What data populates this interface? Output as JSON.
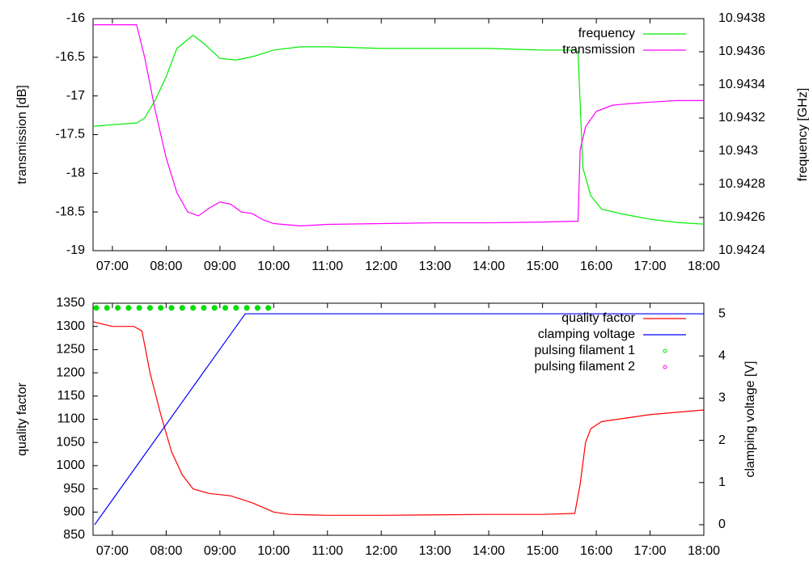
{
  "chart_data": [
    {
      "type": "line",
      "ylabel": "transmission [dB]",
      "y2label": "frequency [GHz]",
      "xlim": [
        6.64,
        18
      ],
      "xticks": [
        {
          "value": 7,
          "label": "07:00"
        },
        {
          "value": 8,
          "label": "08:00"
        },
        {
          "value": 9,
          "label": "09:00"
        },
        {
          "value": 10,
          "label": "10:00"
        },
        {
          "value": 11,
          "label": "11:00"
        },
        {
          "value": 12,
          "label": "12:00"
        },
        {
          "value": 13,
          "label": "13:00"
        },
        {
          "value": 14,
          "label": "14:00"
        },
        {
          "value": 15,
          "label": "15:00"
        },
        {
          "value": 16,
          "label": "16:00"
        },
        {
          "value": 17,
          "label": "17:00"
        },
        {
          "value": 18,
          "label": "18:00"
        }
      ],
      "ylim": [
        -19,
        -16
      ],
      "yticks": [
        -19,
        -18.5,
        -18,
        -17.5,
        -17,
        -16.5,
        -16
      ],
      "y2lim": [
        10.9424,
        10.9438
      ],
      "y2ticks": [
        10.9424,
        10.9426,
        10.9428,
        10.943,
        10.9432,
        10.9434,
        10.9436,
        10.9438
      ],
      "legend": "upper right",
      "series": [
        {
          "name": "frequency",
          "color": "#00ee00",
          "style": "line",
          "axis": "y2",
          "x": [
            6.64,
            7.0,
            7.45,
            7.6,
            7.8,
            8.0,
            8.2,
            8.5,
            8.7,
            9.0,
            9.3,
            9.6,
            10.0,
            10.5,
            11,
            12,
            13,
            14,
            15,
            15.6,
            15.66,
            15.75,
            15.9,
            16.1,
            16.5,
            17,
            17.5,
            18
          ],
          "values": [
            10.94315,
            10.94316,
            10.94317,
            10.9432,
            10.94331,
            10.94345,
            10.94362,
            10.9437,
            10.94365,
            10.94356,
            10.94355,
            10.94357,
            10.94361,
            10.94363,
            10.94363,
            10.94362,
            10.94362,
            10.94362,
            10.94361,
            10.94361,
            10.9436,
            10.9429,
            10.94273,
            10.94265,
            10.94262,
            10.94259,
            10.94257,
            10.94256
          ]
        },
        {
          "name": "transmission",
          "color": "#ff00ff",
          "style": "line",
          "x": [
            6.64,
            7.0,
            7.45,
            7.6,
            7.8,
            8.0,
            8.2,
            8.4,
            8.6,
            8.8,
            9.0,
            9.2,
            9.4,
            9.6,
            9.8,
            10.0,
            10.5,
            11,
            12,
            13,
            14,
            15,
            15.6,
            15.66,
            15.7,
            15.8,
            16.0,
            16.3,
            16.6,
            17,
            17.5,
            18
          ],
          "values": [
            -16.08,
            -16.08,
            -16.08,
            -16.5,
            -17.2,
            -17.8,
            -18.25,
            -18.5,
            -18.55,
            -18.45,
            -18.37,
            -18.4,
            -18.5,
            -18.52,
            -18.6,
            -18.65,
            -18.68,
            -18.66,
            -18.65,
            -18.64,
            -18.64,
            -18.63,
            -18.62,
            -18.62,
            -17.7,
            -17.4,
            -17.2,
            -17.12,
            -17.1,
            -17.08,
            -17.06,
            -17.06
          ]
        }
      ]
    },
    {
      "type": "line",
      "ylabel": "quality factor",
      "y2label": "clamping voltage [V]",
      "xlim": [
        6.64,
        18
      ],
      "xticks": [
        {
          "value": 7,
          "label": "07:00"
        },
        {
          "value": 8,
          "label": "08:00"
        },
        {
          "value": 9,
          "label": "09:00"
        },
        {
          "value": 10,
          "label": "10:00"
        },
        {
          "value": 11,
          "label": "11:00"
        },
        {
          "value": 12,
          "label": "12:00"
        },
        {
          "value": 13,
          "label": "13:00"
        },
        {
          "value": 14,
          "label": "14:00"
        },
        {
          "value": 15,
          "label": "15:00"
        },
        {
          "value": 16,
          "label": "16:00"
        },
        {
          "value": 17,
          "label": "17:00"
        },
        {
          "value": 18,
          "label": "18:00"
        }
      ],
      "ylim": [
        850,
        1350
      ],
      "yticks": [
        850,
        900,
        950,
        1000,
        1050,
        1100,
        1150,
        1200,
        1250,
        1300,
        1350
      ],
      "y2lim": [
        -0.25,
        5.25
      ],
      "y2ticks": [
        0,
        1,
        2,
        3,
        4,
        5
      ],
      "legend": "upper right",
      "series": [
        {
          "name": "quality factor",
          "color": "#ff0000",
          "style": "line",
          "x": [
            6.64,
            7.0,
            7.4,
            7.55,
            7.7,
            7.9,
            8.1,
            8.3,
            8.5,
            8.8,
            9.2,
            9.6,
            9.8,
            10.0,
            10.3,
            11,
            12,
            13,
            14,
            15,
            15.6,
            15.7,
            15.8,
            15.9,
            16.1,
            16.4,
            17,
            17.5,
            18
          ],
          "values": [
            1310,
            1300,
            1300,
            1290,
            1200,
            1110,
            1030,
            980,
            950,
            940,
            935,
            920,
            910,
            900,
            895,
            893,
            893,
            894,
            895,
            895,
            897,
            960,
            1050,
            1080,
            1095,
            1100,
            1110,
            1115,
            1120
          ]
        },
        {
          "name": "clamping voltage",
          "color": "#0000ff",
          "style": "line",
          "axis": "y2",
          "x": [
            6.67,
            9.47,
            18
          ],
          "values": [
            0,
            5,
            5
          ]
        },
        {
          "name": "pulsing filament 1",
          "color": "#00dd00",
          "style": "points",
          "x": [
            6.7,
            6.9,
            7.1,
            7.3,
            7.5,
            7.7,
            7.9,
            8.1,
            8.3,
            8.5,
            8.7,
            8.9,
            9.1,
            9.3,
            9.5,
            9.7,
            9.9
          ],
          "values": [
            1340,
            1340,
            1340,
            1340,
            1340,
            1340,
            1340,
            1340,
            1340,
            1340,
            1340,
            1340,
            1340,
            1340,
            1340,
            1340,
            1340
          ]
        },
        {
          "name": "pulsing filament 2",
          "color": "#ff00ff",
          "style": "points",
          "x": [],
          "values": []
        }
      ]
    }
  ]
}
